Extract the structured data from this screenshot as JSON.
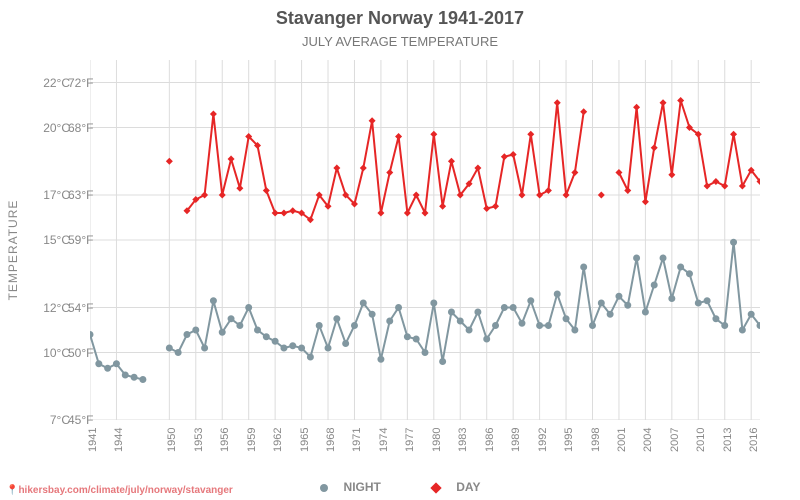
{
  "title": "Stavanger Norway 1941-2017",
  "subtitle": "JULY AVERAGE TEMPERATURE",
  "ylabel": "TEMPERATURE",
  "source": "hikersbay.com/climate/july/norway/stavanger",
  "legend": {
    "night": "NIGHT",
    "day": "DAY"
  },
  "chart": {
    "type": "line",
    "background_color": "#ffffff",
    "grid_color": "#dcdcdc",
    "title_fontsize": 18,
    "subtitle_fontsize": 13,
    "label_fontsize": 12,
    "colors": {
      "day": "#e62626",
      "night": "#8197a0",
      "text": "#888888"
    },
    "line_width": 2,
    "marker_size": 3.5,
    "day_marker": "diamond",
    "night_marker": "circle",
    "xlim": [
      1941,
      2017
    ],
    "ylim_c": [
      7,
      23
    ],
    "yticks": [
      {
        "c": "7°C",
        "f": "45°F",
        "val": 7
      },
      {
        "c": "10°C",
        "f": "50°F",
        "val": 10
      },
      {
        "c": "12°C",
        "f": "54°F",
        "val": 12
      },
      {
        "c": "15°C",
        "f": "59°F",
        "val": 15
      },
      {
        "c": "17°C",
        "f": "63°F",
        "val": 17
      },
      {
        "c": "20°C",
        "f": "68°F",
        "val": 20
      },
      {
        "c": "22°C",
        "f": "72°F",
        "val": 22
      }
    ],
    "xticks": [
      1941,
      1944,
      1950,
      1953,
      1956,
      1959,
      1962,
      1965,
      1968,
      1971,
      1974,
      1977,
      1980,
      1983,
      1986,
      1989,
      1992,
      1995,
      1998,
      2001,
      2004,
      2007,
      2010,
      2013,
      2016
    ],
    "night": {
      "1941": 10.8,
      "1942": 9.5,
      "1943": 9.3,
      "1944": 9.5,
      "1945": 9.0,
      "1946": 8.9,
      "1947": 8.8,
      "1950": 10.2,
      "1951": 10.0,
      "1952": 10.8,
      "1953": 11.0,
      "1954": 10.2,
      "1955": 12.3,
      "1956": 10.9,
      "1957": 11.5,
      "1958": 11.2,
      "1959": 12.0,
      "1960": 11.0,
      "1961": 10.7,
      "1962": 10.5,
      "1963": 10.2,
      "1964": 10.3,
      "1965": 10.2,
      "1966": 9.8,
      "1967": 11.2,
      "1968": 10.2,
      "1969": 11.5,
      "1970": 10.4,
      "1971": 11.2,
      "1972": 12.2,
      "1973": 11.7,
      "1974": 9.7,
      "1975": 11.4,
      "1976": 12.0,
      "1977": 10.7,
      "1978": 10.6,
      "1979": 10.0,
      "1980": 12.2,
      "1981": 9.6,
      "1982": 11.8,
      "1983": 11.4,
      "1984": 11.0,
      "1985": 11.8,
      "1986": 10.6,
      "1987": 11.2,
      "1988": 12.0,
      "1989": 12.0,
      "1990": 11.3,
      "1991": 12.3,
      "1992": 11.2,
      "1993": 11.2,
      "1994": 12.6,
      "1995": 11.5,
      "1996": 11.0,
      "1997": 13.8,
      "1998": 11.2,
      "1999": 12.2,
      "2000": 11.7,
      "2001": 12.5,
      "2002": 12.1,
      "2003": 14.2,
      "2004": 11.8,
      "2005": 13.0,
      "2006": 14.2,
      "2007": 12.4,
      "2008": 13.8,
      "2009": 13.5,
      "2010": 12.2,
      "2011": 12.3,
      "2012": 11.5,
      "2013": 11.2,
      "2014": 14.9,
      "2015": 11.0,
      "2016": 11.7,
      "2017": 11.2
    },
    "day": {
      "1950": 18.5,
      "1952": 16.3,
      "1953": 16.8,
      "1954": 17.0,
      "1955": 20.6,
      "1956": 17.0,
      "1957": 18.6,
      "1958": 17.3,
      "1959": 19.6,
      "1960": 19.2,
      "1961": 17.2,
      "1962": 16.2,
      "1963": 16.2,
      "1964": 16.3,
      "1965": 16.2,
      "1966": 15.9,
      "1967": 17.0,
      "1968": 16.5,
      "1969": 18.2,
      "1970": 17.0,
      "1971": 16.6,
      "1972": 18.2,
      "1973": 20.3,
      "1974": 16.2,
      "1975": 18.0,
      "1976": 19.6,
      "1977": 16.2,
      "1978": 17.0,
      "1979": 16.2,
      "1980": 19.7,
      "1981": 16.5,
      "1982": 18.5,
      "1983": 17.0,
      "1984": 17.5,
      "1985": 18.2,
      "1986": 16.4,
      "1987": 16.5,
      "1988": 18.7,
      "1989": 18.8,
      "1990": 17.0,
      "1991": 19.7,
      "1992": 17.0,
      "1993": 17.2,
      "1994": 21.1,
      "1995": 17.0,
      "1996": 18.0,
      "1997": 20.7,
      "1999": 17.0,
      "2001": 18.0,
      "2002": 17.2,
      "2003": 20.9,
      "2004": 16.7,
      "2005": 19.1,
      "2006": 21.1,
      "2007": 17.9,
      "2008": 21.2,
      "2009": 20.0,
      "2010": 19.7,
      "2011": 17.4,
      "2012": 17.6,
      "2013": 17.4,
      "2014": 19.7,
      "2015": 17.4,
      "2016": 18.1,
      "2017": 17.6
    }
  }
}
